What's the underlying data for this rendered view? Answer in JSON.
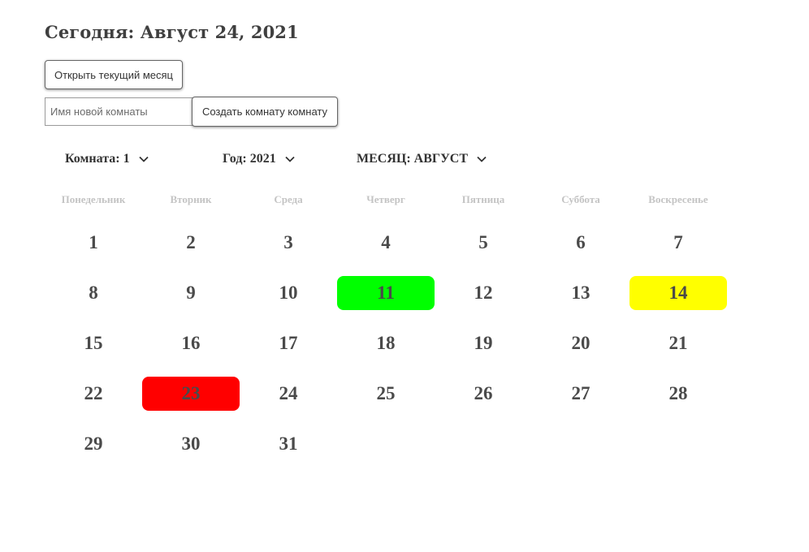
{
  "header": {
    "today_label": "Сегодня: Август 24, 2021"
  },
  "controls": {
    "open_month_label": "Открыть текущий месяц",
    "room_name_placeholder": "Имя новой комнаты",
    "create_room_label": "Создать комнату комнату"
  },
  "selectors": {
    "room": "Комната: 1",
    "year": "Год: 2021",
    "month": "МЕСЯЦ: АВГУСТ",
    "chevron_icon": "chevron-down-icon"
  },
  "calendar": {
    "weekdays": [
      "Понедельник",
      "Вторник",
      "Среда",
      "Четверг",
      "Пятница",
      "Суббота",
      "Воскресенье"
    ],
    "days": [
      "1",
      "2",
      "3",
      "4",
      "5",
      "6",
      "7",
      "8",
      "9",
      "10",
      "11",
      "12",
      "13",
      "14",
      "15",
      "16",
      "17",
      "18",
      "19",
      "20",
      "21",
      "22",
      "23",
      "24",
      "25",
      "26",
      "27",
      "28",
      "29",
      "30",
      "31"
    ],
    "highlights": {
      "11": "#00ff00",
      "14": "#ffff00",
      "23": "#ff0000"
    }
  }
}
